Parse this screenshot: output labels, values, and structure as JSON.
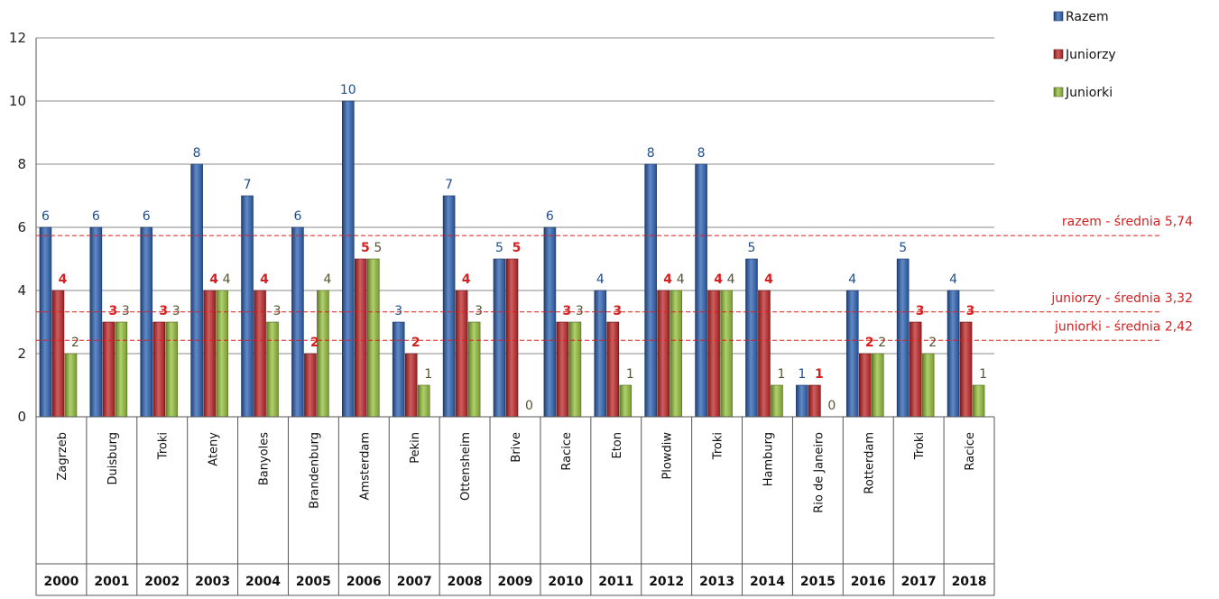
{
  "chart_data": {
    "type": "bar",
    "ylim": [
      0,
      12
    ],
    "yticks": [
      0,
      2,
      4,
      6,
      8,
      10,
      12
    ],
    "grid": true,
    "legend_position": "top-right",
    "categories": [
      "Zagrzeb",
      "Duisburg",
      "Troki",
      "Ateny",
      "Banyoles",
      "Brandenburg",
      "Amsterdam",
      "Pekin",
      "Ottensheim",
      "Brive",
      "Racice",
      "Eton",
      "Plowdiw",
      "Troki",
      "Hamburg",
      "Rio de Janeiro",
      "Rotterdam",
      "Troki",
      "Racice"
    ],
    "years": [
      "2000",
      "2001",
      "2002",
      "2003",
      "2004",
      "2005",
      "2006",
      "2007",
      "2008",
      "2009",
      "2010",
      "2011",
      "2012",
      "2013",
      "2014",
      "2015",
      "2016",
      "2017",
      "2018"
    ],
    "series": [
      {
        "name": "Razem",
        "color": "#2e63b4",
        "label_color": "#1f4e8c",
        "values": [
          6,
          6,
          6,
          8,
          7,
          6,
          10,
          3,
          7,
          5,
          6,
          4,
          8,
          8,
          5,
          1,
          4,
          5,
          4
        ]
      },
      {
        "name": "Juniorzy",
        "color": "#c0282a",
        "label_color": "#d42020",
        "values": [
          4,
          3,
          3,
          4,
          4,
          2,
          5,
          2,
          4,
          5,
          3,
          3,
          4,
          4,
          4,
          1,
          2,
          3,
          3
        ]
      },
      {
        "name": "Juniorki",
        "color": "#96c03c",
        "label_color": "#555533",
        "values": [
          2,
          3,
          3,
          4,
          3,
          4,
          5,
          1,
          3,
          0,
          3,
          1,
          4,
          4,
          1,
          0,
          2,
          2,
          1
        ]
      }
    ],
    "averages": [
      {
        "label": "razem - średnia 5,74",
        "value": 5.74
      },
      {
        "label": "juniorzy - średnia 3,32",
        "value": 3.32
      },
      {
        "label": "juniorki - średnia 2,42",
        "value": 2.42
      }
    ],
    "avg_color": "#d42020"
  }
}
